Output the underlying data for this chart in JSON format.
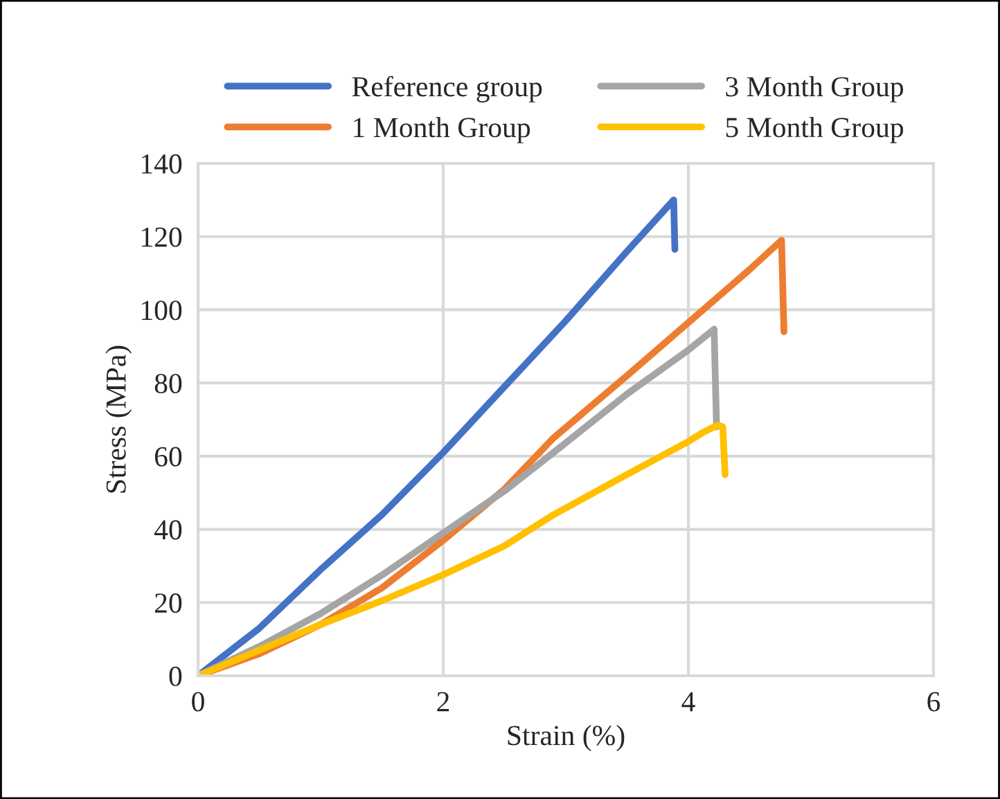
{
  "chart_data": {
    "type": "line",
    "xlabel": "Strain (%)",
    "ylabel": "Stress (MPa)",
    "xlim": [
      0,
      6
    ],
    "xticks": [
      0,
      2,
      4,
      6
    ],
    "ylim": [
      0,
      140
    ],
    "yticks": [
      0,
      20,
      40,
      60,
      80,
      100,
      120,
      140
    ],
    "grid": true,
    "legend": "top",
    "marker": "none",
    "line_style": "solid",
    "series": [
      {
        "name": "Reference group",
        "color": "#4472c4",
        "x": [
          0,
          0.5,
          1,
          1.5,
          2,
          2.5,
          3,
          3.5,
          3.88,
          3.89
        ],
        "values": [
          0,
          13,
          29,
          44,
          61,
          79,
          97,
          116,
          130,
          116.5
        ]
      },
      {
        "name": "1 Month Group",
        "color": "#ed7d31",
        "x": [
          0,
          0.5,
          1,
          1.5,
          2,
          2.5,
          2.9,
          3.5,
          4,
          4.5,
          4.76,
          4.78
        ],
        "values": [
          0,
          6,
          14,
          24,
          37,
          51,
          65,
          82,
          96.5,
          111,
          119,
          94
        ]
      },
      {
        "name": "3 Month Group",
        "color": "#a5a5a5",
        "x": [
          0,
          0.5,
          1,
          1.5,
          2,
          2.5,
          2.9,
          3.5,
          4,
          4.21,
          4.23
        ],
        "values": [
          0,
          8,
          17,
          27.5,
          39,
          50.5,
          61,
          77,
          89,
          94.7,
          68
        ]
      },
      {
        "name": "5 Month Group",
        "color": "#ffc000",
        "x": [
          0,
          0.5,
          1,
          1.5,
          2,
          2.5,
          2.9,
          3.5,
          4,
          4.12,
          4.24,
          4.28,
          4.3
        ],
        "values": [
          0,
          7,
          14,
          20.5,
          27.6,
          35.5,
          44,
          55,
          64,
          66.5,
          68.5,
          68,
          55
        ]
      }
    ]
  }
}
